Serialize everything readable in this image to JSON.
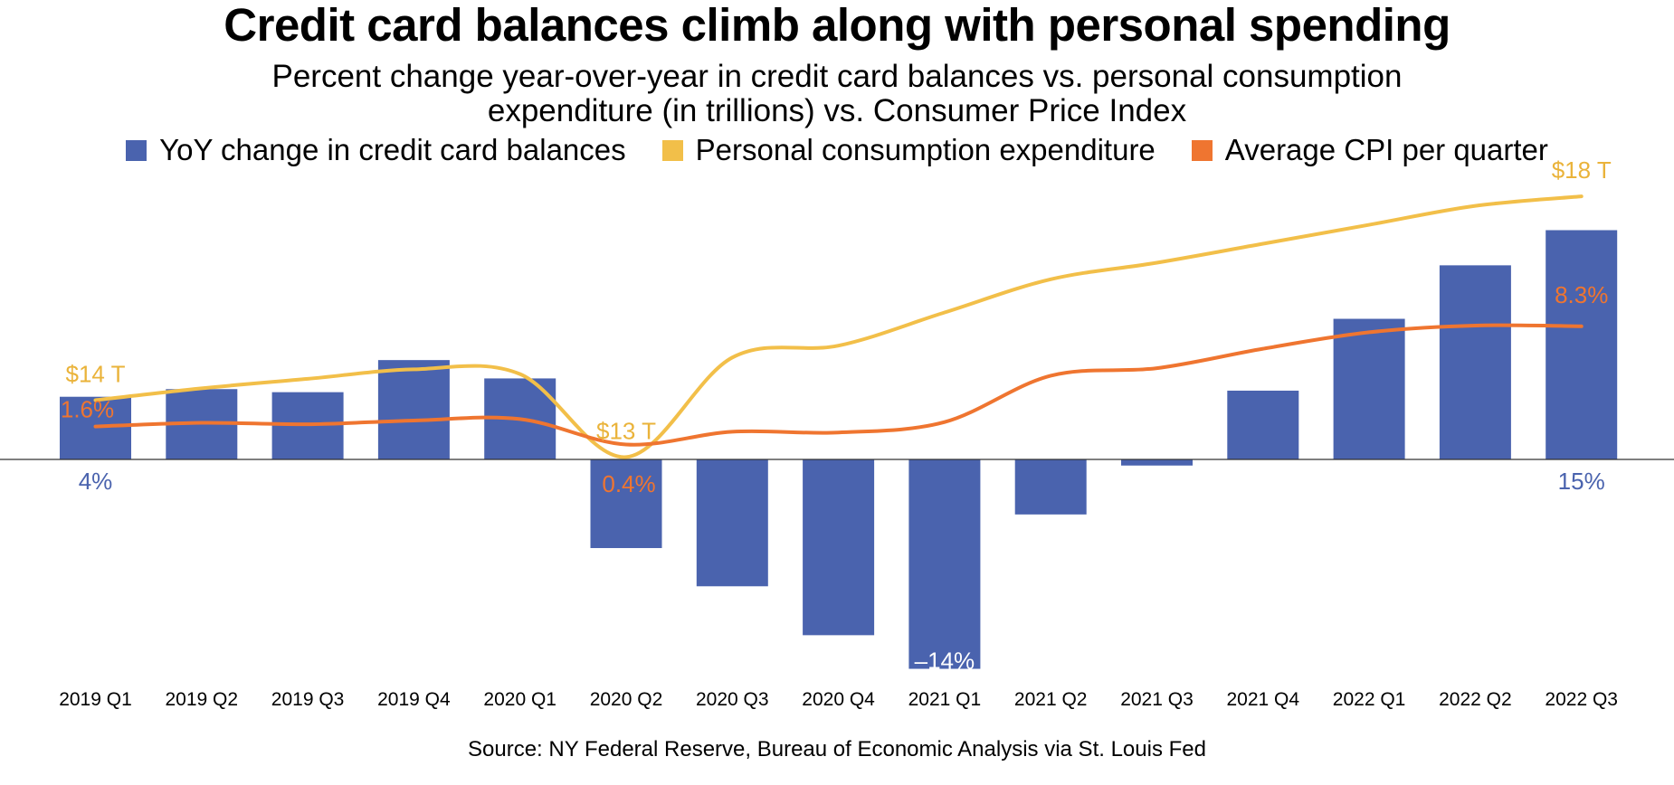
{
  "chart_data": {
    "type": "bar+line",
    "title": "Credit card balances climb along with personal spending",
    "subtitle_lines": [
      "Percent change year-over-year in credit card balances vs. personal consumption",
      "expenditure (in trillions) vs. Consumer Price Index"
    ],
    "categories": [
      "2019 Q1",
      "2019 Q2",
      "2019 Q3",
      "2019 Q4",
      "2020 Q1",
      "2020 Q2",
      "2020 Q3",
      "2020 Q4",
      "2021 Q1",
      "2021 Q2",
      "2021 Q3",
      "2021 Q4",
      "2022 Q1",
      "2022 Q2",
      "2022 Q3"
    ],
    "series": [
      {
        "name": "YoY change in credit card balances",
        "kind": "bar",
        "color": "#4a63ae",
        "values": [
          4.1,
          4.6,
          4.4,
          6.5,
          5.3,
          -5.8,
          -8.3,
          -11.5,
          -13.7,
          -3.6,
          -0.4,
          4.5,
          9.2,
          12.7,
          15.0
        ]
      },
      {
        "name": "Personal consumption expenditure",
        "kind": "line",
        "color": "#f2bf49",
        "unit": "trillions",
        "values": [
          14.05,
          14.3,
          14.5,
          14.7,
          14.6,
          12.85,
          14.95,
          15.2,
          15.9,
          16.6,
          16.95,
          17.35,
          17.75,
          18.15,
          18.35
        ]
      },
      {
        "name": "Average CPI per quarter",
        "kind": "line",
        "color": "#ef7530",
        "unit": "percent",
        "values": [
          1.6,
          1.85,
          1.75,
          2.0,
          2.1,
          0.4,
          1.25,
          1.2,
          1.9,
          5.0,
          5.5,
          6.8,
          7.9,
          8.35,
          8.3
        ]
      }
    ],
    "data_labels": [
      {
        "series": 0,
        "index": 0,
        "text": "4%"
      },
      {
        "series": 0,
        "index": 8,
        "text": "–14%"
      },
      {
        "series": 0,
        "index": 14,
        "text": "15%"
      },
      {
        "series": 1,
        "index": 0,
        "text": "$14 T"
      },
      {
        "series": 1,
        "index": 5,
        "text": "$13 T"
      },
      {
        "series": 1,
        "index": 14,
        "text": "$18 T"
      },
      {
        "series": 2,
        "index": 0,
        "text": "1.6%"
      },
      {
        "series": 2,
        "index": 5,
        "text": "0.4%"
      },
      {
        "series": 2,
        "index": 14,
        "text": "8.3%"
      }
    ],
    "bar_axis_range": [
      -15,
      17
    ],
    "expenditure_axis_range": [
      12.8,
      18.6
    ],
    "cpi_axis_range": [
      -0.6,
      15.0
    ],
    "grid": false,
    "legend_position": "top",
    "xlabel": "",
    "ylabel": ""
  },
  "source": "Source: NY Federal Reserve, Bureau of Economic Analysis via St. Louis Fed"
}
